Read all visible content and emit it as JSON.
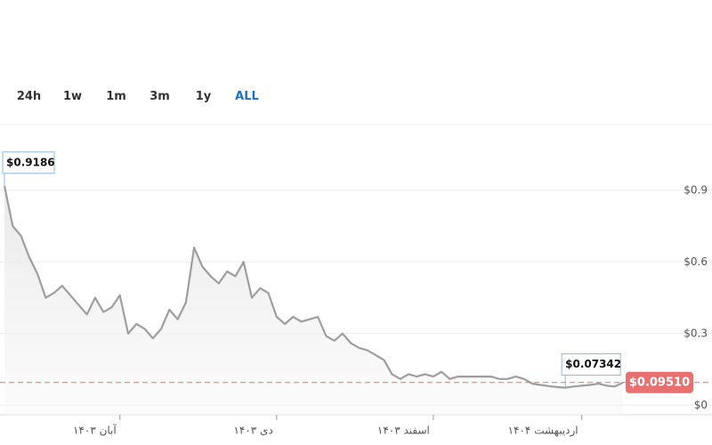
{
  "range_selector": {
    "options": [
      "24h",
      "1w",
      "1m",
      "3m",
      "1y",
      "ALL"
    ],
    "selected": 5
  },
  "chart_data": {
    "type": "line",
    "categories": [
      null,
      null,
      null,
      null,
      null,
      null,
      null,
      null,
      null,
      null,
      null,
      null,
      null,
      null,
      "آبان ۱۴۰۳",
      null,
      null,
      null,
      null,
      null,
      null,
      null,
      null,
      null,
      null,
      null,
      null,
      null,
      null,
      null,
      null,
      null,
      null,
      "دی ۱۴۰۳",
      null,
      null,
      null,
      null,
      null,
      null,
      null,
      null,
      null,
      null,
      null,
      null,
      null,
      null,
      null,
      null,
      null,
      null,
      "اسفند ۱۴۰۳",
      null,
      null,
      null,
      null,
      null,
      null,
      null,
      null,
      null,
      null,
      null,
      null,
      null,
      null,
      null,
      null,
      null,
      "اردیبهشت ۱۴۰۴",
      null,
      null,
      null,
      null,
      null
    ],
    "series": [
      {
        "color": "#9e9e9e",
        "values": [
          0.9186,
          0.75,
          0.71,
          0.62,
          0.55,
          0.45,
          0.47,
          0.5,
          0.46,
          0.42,
          0.38,
          0.45,
          0.39,
          0.41,
          0.46,
          0.3,
          0.34,
          0.32,
          0.28,
          0.32,
          0.4,
          0.36,
          0.43,
          0.66,
          0.58,
          0.54,
          0.51,
          0.56,
          0.54,
          0.6,
          0.45,
          0.49,
          0.47,
          0.37,
          0.34,
          0.37,
          0.35,
          0.36,
          0.37,
          0.29,
          0.27,
          0.3,
          0.26,
          0.24,
          0.23,
          0.21,
          0.19,
          0.13,
          0.11,
          0.13,
          0.12,
          0.13,
          0.12,
          0.14,
          0.11,
          0.12,
          0.12,
          0.12,
          0.12,
          0.12,
          0.11,
          0.11,
          0.12,
          0.11,
          0.09,
          0.085,
          0.08,
          0.076,
          0.07342,
          0.078,
          0.082,
          0.085,
          0.09,
          0.082,
          0.078,
          0.0951
        ],
        "value_labels": [
          "$0.9186",
          null,
          null,
          null,
          null,
          null,
          null,
          null,
          null,
          null,
          null,
          null,
          null,
          null,
          null,
          null,
          null,
          null,
          null,
          null,
          null,
          null,
          null,
          null,
          null,
          null,
          null,
          null,
          null,
          null,
          null,
          null,
          null,
          null,
          null,
          null,
          null,
          null,
          null,
          null,
          null,
          null,
          null,
          null,
          null,
          null,
          null,
          null,
          null,
          null,
          null,
          null,
          null,
          null,
          null,
          null,
          null,
          null,
          null,
          null,
          null,
          null,
          null,
          null,
          null,
          null,
          null,
          null,
          "$0.07342",
          null,
          null,
          null,
          null,
          null,
          null,
          "$0.09510"
        ]
      }
    ],
    "ylim": [
      -0.04,
      1.175
    ],
    "yticks": [
      {
        "value": 0,
        "label": "$0"
      },
      {
        "value": 0.3,
        "label": "$0.3"
      },
      {
        "value": 0.6,
        "label": "$0.6"
      },
      {
        "value": 0.9,
        "label": "$0.9"
      }
    ],
    "grid": true,
    "current_color": "#e87070"
  }
}
